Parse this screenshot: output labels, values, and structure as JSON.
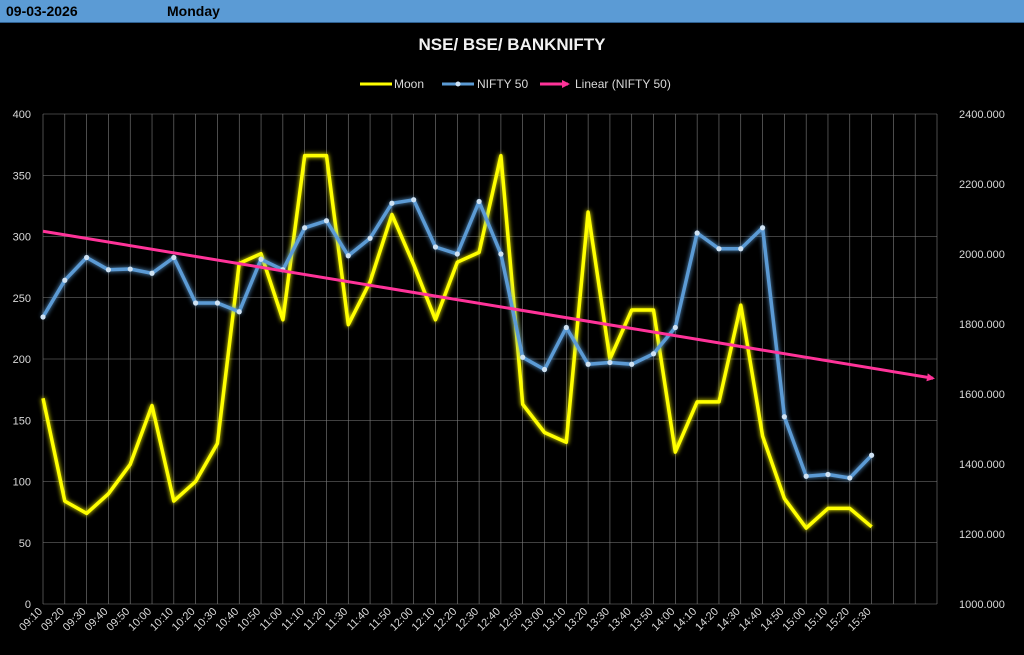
{
  "header": {
    "date": "09-03-2026",
    "day": "Monday"
  },
  "colors": {
    "moon": "#ffff00",
    "nifty": "#5b9bd5",
    "linear": "#ff3399",
    "header_bg": "#5b9bd5"
  },
  "chart_data": {
    "type": "line",
    "title": "NSE/ BSE/ BANKNIFTY",
    "legend_position": "top",
    "grid": true,
    "categories": [
      "09:10",
      "09:20",
      "09:30",
      "09:40",
      "09:50",
      "10:00",
      "10:10",
      "10:20",
      "10:30",
      "10:40",
      "10:50",
      "11:00",
      "11:10",
      "11:20",
      "11:30",
      "11:40",
      "11:50",
      "12:00",
      "12:10",
      "12:20",
      "12:30",
      "12:40",
      "12:50",
      "13:00",
      "13:10",
      "13:20",
      "13:30",
      "13:40",
      "13:50",
      "14:00",
      "14:10",
      "14:20",
      "14:30",
      "14:40",
      "14:50",
      "15:00",
      "15:10",
      "15:20",
      "15:30"
    ],
    "y_left": {
      "min": 0,
      "max": 400,
      "step": 50,
      "ticks": [
        "0",
        "50",
        "100",
        "150",
        "200",
        "250",
        "300",
        "350",
        "400"
      ]
    },
    "y_right": {
      "min": 1000,
      "max": 2400,
      "step": 200,
      "ticks": [
        "1000.000",
        "1200.000",
        "1400.000",
        "1600.000",
        "1800.000",
        "2000.000",
        "2200.000",
        "2400.000"
      ]
    },
    "series": [
      {
        "name": "Moon",
        "axis": "left",
        "values": [
          168,
          84,
          74,
          90,
          114,
          162,
          84,
          100,
          131,
          278,
          286,
          232,
          366,
          366,
          228,
          263,
          318,
          277,
          232,
          279,
          287,
          366,
          163,
          140,
          132,
          320,
          200,
          240,
          240,
          124,
          165,
          165,
          244,
          137,
          86,
          62,
          78,
          78,
          63
        ]
      },
      {
        "name": "NIFTY 50",
        "axis": "right",
        "values": [
          1820,
          1925,
          1990,
          1955,
          1957,
          1945,
          1990,
          1860,
          1860,
          1835,
          1985,
          1955,
          2075,
          2095,
          1995,
          2045,
          2145,
          2155,
          2020,
          2000,
          2150,
          2000,
          1705,
          1670,
          1790,
          1685,
          1690,
          1685,
          1715,
          1790,
          2060,
          2015,
          2015,
          2075,
          1535,
          1365,
          1370,
          1360,
          1425
        ]
      },
      {
        "name": "Linear (NIFTY 50)",
        "axis": "right",
        "trendline": true,
        "start": 2065,
        "end": 1645
      }
    ]
  }
}
